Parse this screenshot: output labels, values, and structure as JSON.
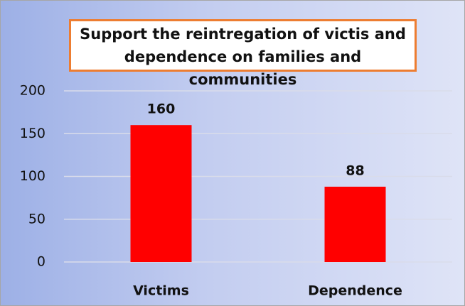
{
  "chart_data": {
    "type": "bar",
    "title": "Support the reintregation of victis and dependence on families and communities",
    "categories": [
      "Victims",
      "Dependence"
    ],
    "values": [
      160,
      88
    ],
    "color": "#ff0000",
    "ylim": [
      0,
      200
    ],
    "yticks": [
      0,
      50,
      100,
      150,
      200
    ],
    "grid": true
  }
}
